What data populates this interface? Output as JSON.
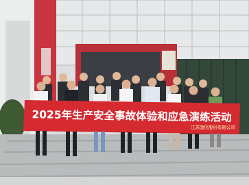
{
  "banner": {
    "title": "2025年生产安全事故体验和应急演练活动",
    "organization": "江苏国信股份有限公司"
  }
}
